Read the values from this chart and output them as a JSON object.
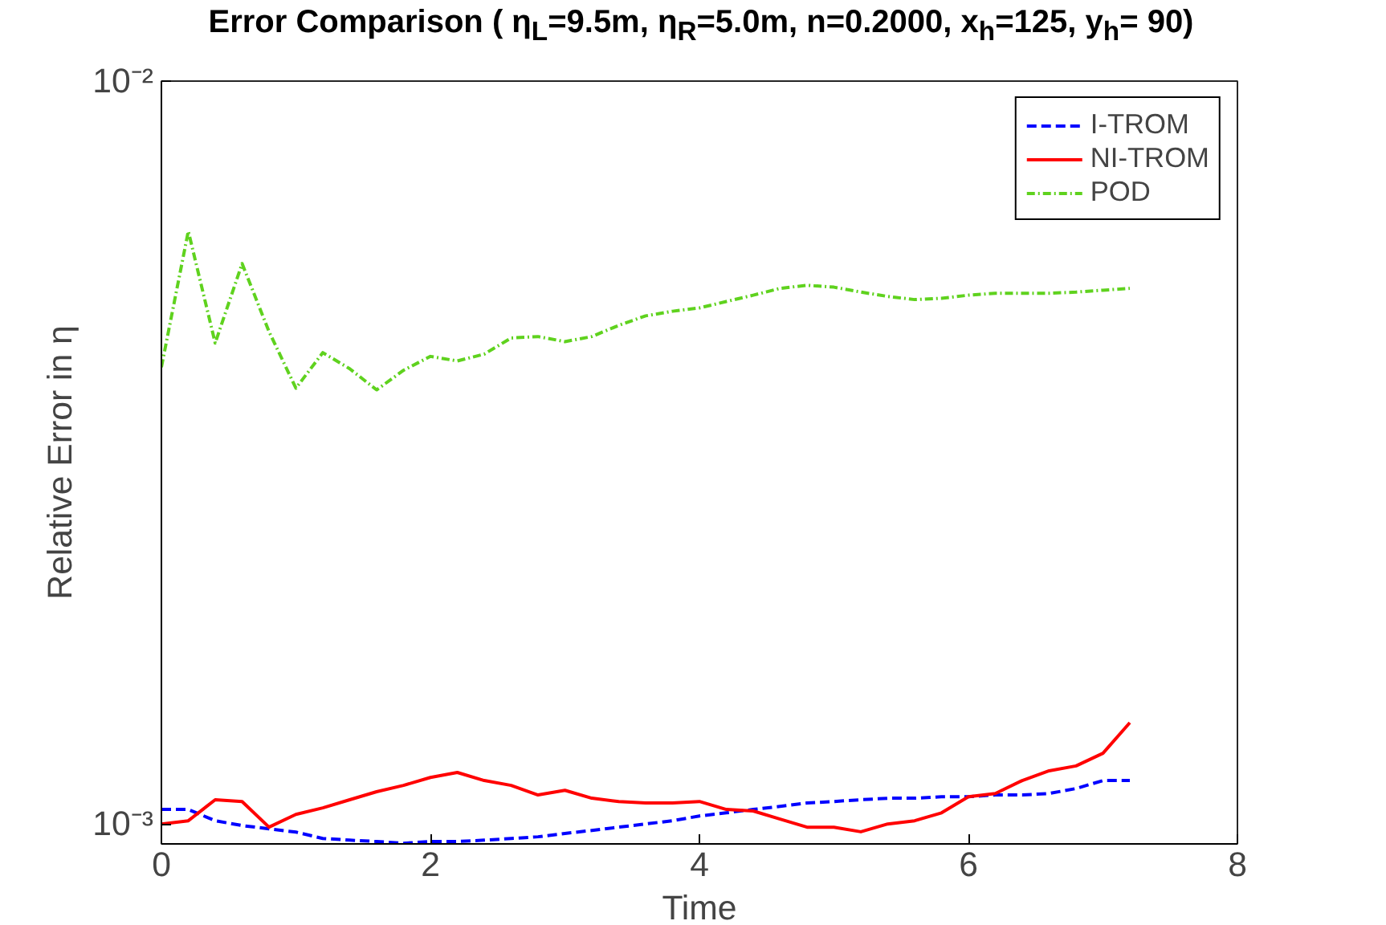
{
  "chart_data": {
    "type": "line",
    "title": "Error Comparison ( η$_{L}$=9.5m, η$_{R}$=5.0m, n=0.2000, x$_{h}$=125, y$_{h}$= 90)",
    "xlabel": "Time",
    "ylabel": "Relative Error in η",
    "x": [
      0,
      0.2,
      0.4,
      0.6,
      0.8,
      1.0,
      1.2,
      1.4,
      1.6,
      1.8,
      2.0,
      2.2,
      2.4,
      2.6,
      2.8,
      3.0,
      3.2,
      3.4,
      3.6,
      3.8,
      4.0,
      4.2,
      4.4,
      4.6,
      4.8,
      5.0,
      5.2,
      5.4,
      5.6,
      5.8,
      6.0,
      6.2,
      6.4,
      6.6,
      6.8,
      7.0,
      7.2
    ],
    "series": [
      {
        "name": "I-TROM",
        "color": "#0000ff",
        "line_style": "dashed",
        "values": [
          0.001046,
          0.001046,
          0.00101,
          0.000995,
          0.000985,
          0.000975,
          0.000956,
          0.000951,
          0.000947,
          0.000942,
          0.000947,
          0.000947,
          0.000951,
          0.000956,
          0.000961,
          0.000971,
          0.00098,
          0.00099,
          0.001,
          0.00101,
          0.001025,
          0.001035,
          0.001046,
          0.001056,
          0.001067,
          0.001072,
          0.001078,
          0.001083,
          0.001083,
          0.001088,
          0.001088,
          0.001094,
          0.001094,
          0.001099,
          0.001116,
          0.001144,
          0.001144
        ]
      },
      {
        "name": "NI-TROM",
        "color": "#ff0000",
        "line_style": "solid",
        "values": [
          0.001,
          0.00101,
          0.001078,
          0.001072,
          0.00099,
          0.00103,
          0.001051,
          0.001078,
          0.001105,
          0.001127,
          0.001155,
          0.001173,
          0.001144,
          0.001127,
          0.001094,
          0.00111,
          0.001083,
          0.001072,
          0.001067,
          0.001067,
          0.001072,
          0.001046,
          0.001041,
          0.001015,
          0.00099,
          0.00099,
          0.000976,
          0.001,
          0.00101,
          0.001035,
          0.001088,
          0.001099,
          0.001144,
          0.001179,
          0.001197,
          0.001245,
          0.001369
        ]
      },
      {
        "name": "POD",
        "color": "#5fd21e",
        "line_style": "dashdot",
        "values": [
          0.00412,
          0.00628,
          0.00444,
          0.00568,
          0.0046,
          0.00386,
          0.00431,
          0.0041,
          0.00384,
          0.00408,
          0.00426,
          0.0042,
          0.00429,
          0.00451,
          0.00453,
          0.00446,
          0.00453,
          0.00469,
          0.00483,
          0.0049,
          0.00495,
          0.00505,
          0.00515,
          0.00526,
          0.00531,
          0.00528,
          0.0052,
          0.00513,
          0.00508,
          0.0051,
          0.00515,
          0.00518,
          0.00518,
          0.00518,
          0.0052,
          0.00523,
          0.00526
        ]
      }
    ],
    "log": "y",
    "xlim": [
      0,
      8
    ],
    "xticks": [
      0,
      2,
      4,
      6,
      8
    ],
    "ylim": [
      0.00094,
      0.01
    ],
    "yticks": [
      {
        "value": 0.001,
        "label": "10⁻³"
      },
      {
        "value": 0.01,
        "label": "10⁻²"
      }
    ],
    "grid": false,
    "legend": "top right"
  }
}
